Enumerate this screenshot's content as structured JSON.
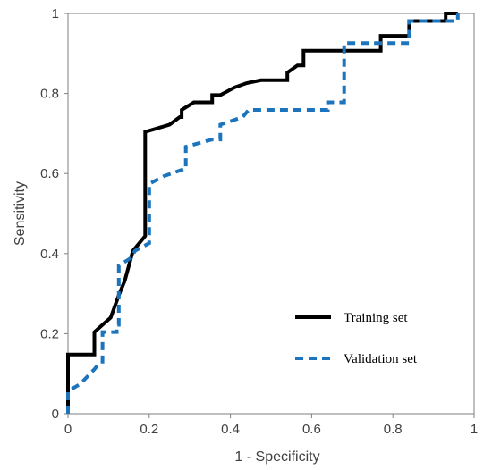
{
  "chart_data": {
    "type": "line",
    "xlabel": "1 - Specificity",
    "ylabel": "Sensitivity",
    "xlim": [
      0,
      1
    ],
    "ylim": [
      0,
      1
    ],
    "xticks": [
      "0",
      "0.2",
      "0.4",
      "0.6",
      "0.8",
      "1"
    ],
    "yticks": [
      "0",
      "0.2",
      "0.4",
      "0.6",
      "0.8",
      "1"
    ],
    "grid": false,
    "legend_position": "bottom-right",
    "series": [
      {
        "name": "Training set",
        "color": "#000000",
        "style": "solid",
        "x": [
          0,
          0,
          0.065,
          0.065,
          0.085,
          0.085,
          0.105,
          0.105,
          0.125,
          0.125,
          0.14,
          0.16,
          0.16,
          0.19,
          0.19,
          0.25,
          0.275,
          0.28,
          0.28,
          0.31,
          0.31,
          0.34,
          0.355,
          0.355,
          0.375,
          0.375,
          0.41,
          0.44,
          0.475,
          0.54,
          0.54,
          0.565,
          0.565,
          0.58,
          0.58,
          0.77,
          0.77,
          0.84,
          0.84,
          0.93,
          0.93,
          0.96
        ],
        "y": [
          0,
          0.148,
          0.148,
          0.204,
          0.222,
          0.222,
          0.24,
          0.24,
          0.296,
          0.296,
          0.333,
          0.407,
          0.407,
          0.444,
          0.704,
          0.722,
          0.741,
          0.741,
          0.759,
          0.778,
          0.778,
          0.778,
          0.778,
          0.796,
          0.796,
          0.796,
          0.815,
          0.826,
          0.833,
          0.833,
          0.852,
          0.87,
          0.87,
          0.87,
          0.907,
          0.907,
          0.944,
          0.944,
          0.981,
          0.981,
          1,
          1
        ]
      },
      {
        "name": "Validation set",
        "color": "#1c75bc",
        "style": "dashed",
        "x": [
          0,
          0,
          0.03,
          0.065,
          0.08,
          0.085,
          0.085,
          0.12,
          0.12,
          0.125,
          0.125,
          0.155,
          0.165,
          0.2,
          0.2,
          0.235,
          0.285,
          0.29,
          0.29,
          0.355,
          0.355,
          0.375,
          0.375,
          0.43,
          0.445,
          0.445,
          0.64,
          0.64,
          0.675,
          0.675,
          0.68,
          0.68,
          0.84,
          0.84,
          0.96,
          0.96
        ],
        "y": [
          0,
          0.056,
          0.074,
          0.111,
          0.13,
          0.13,
          0.204,
          0.204,
          0.222,
          0.222,
          0.37,
          0.389,
          0.407,
          0.426,
          0.574,
          0.593,
          0.611,
          0.611,
          0.667,
          0.685,
          0.685,
          0.685,
          0.722,
          0.741,
          0.759,
          0.759,
          0.759,
          0.778,
          0.778,
          0.778,
          0.778,
          0.926,
          0.926,
          0.981,
          0.981,
          1
        ]
      }
    ]
  }
}
